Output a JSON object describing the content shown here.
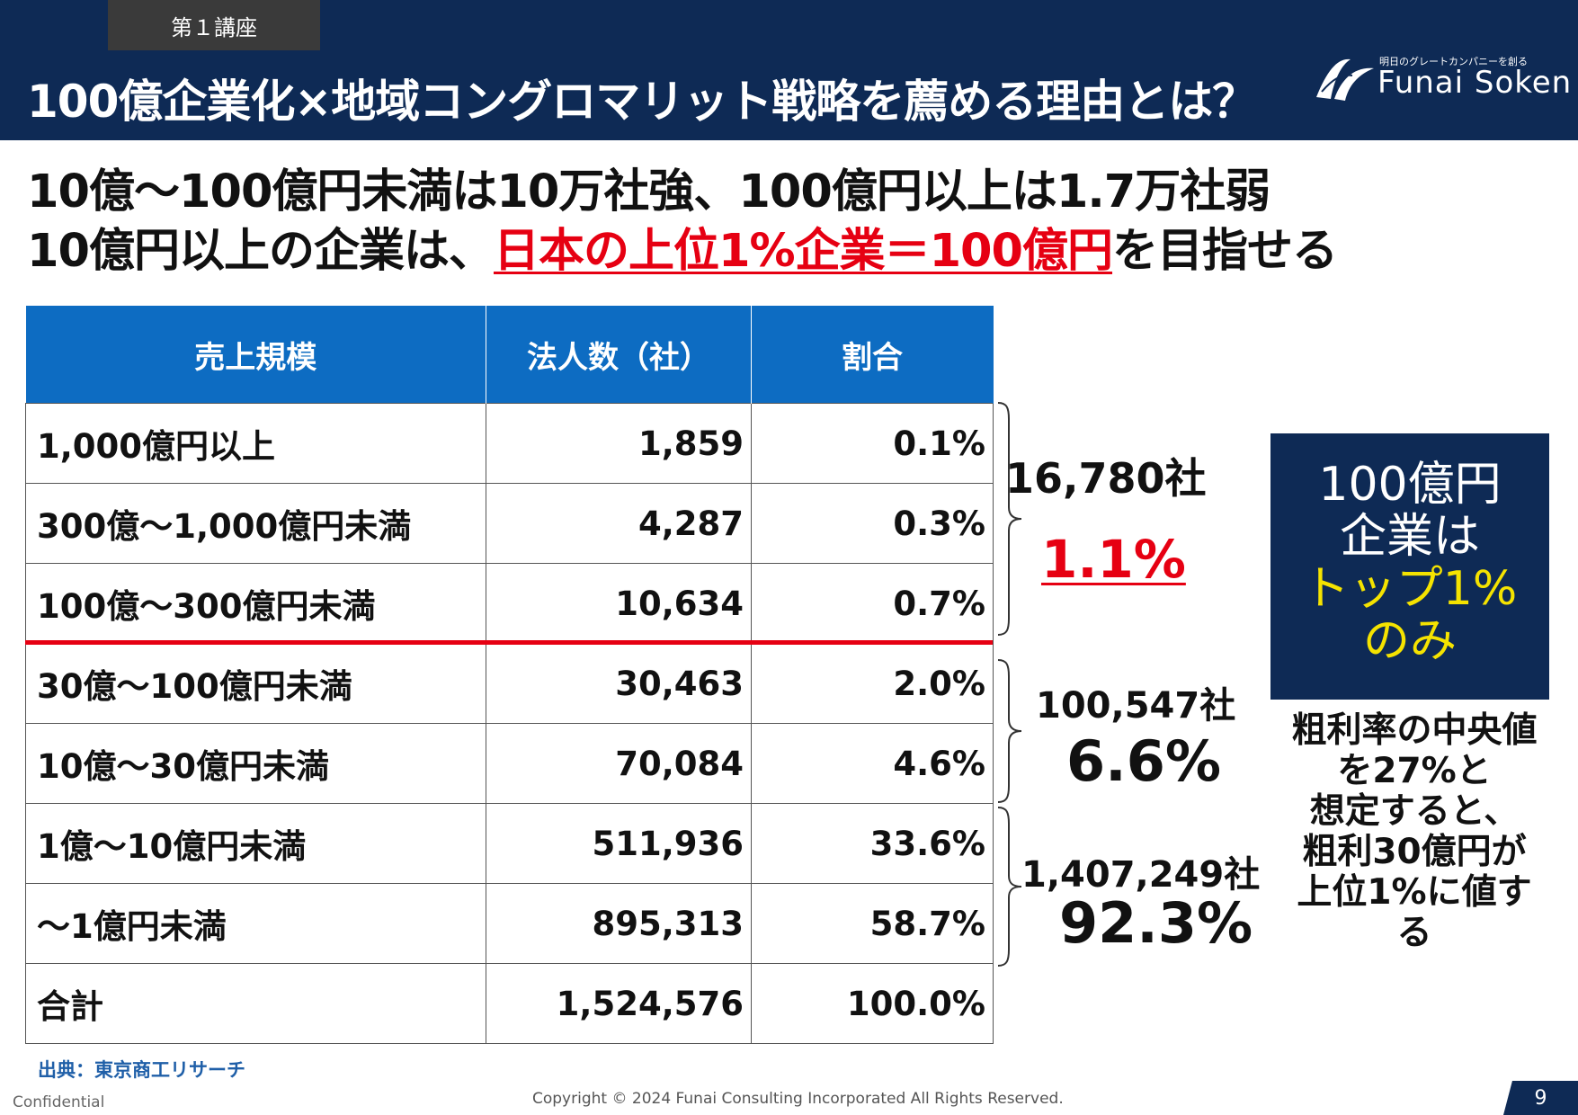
{
  "header": {
    "lecture_label": "第１講座",
    "title": "100億企業化×地域コングロマリット戦略を薦める理由とは？",
    "logo_tagline": "明日のグレートカンパニーを創る",
    "logo_name": "Funai Soken"
  },
  "subtitle": {
    "line1": "10億～100億円未満は10万社強、100億円以上は1.7万社弱",
    "line2_prefix": "10億円以上の企業は、",
    "line2_highlight": "日本の上位1%企業＝100億円",
    "line2_suffix": "を目指せる"
  },
  "table": {
    "headers": [
      "売上規模",
      "法人数（社）",
      "割合"
    ],
    "rows": [
      {
        "scale": "1,000億円以上",
        "count": "1,859",
        "ratio": "0.1%"
      },
      {
        "scale": "300億～1,000億円未満",
        "count": "4,287",
        "ratio": "0.3%"
      },
      {
        "scale": "100億～300億円未満",
        "count": "10,634",
        "ratio": "0.7%"
      },
      {
        "scale": "30億～100億円未満",
        "count": "30,463",
        "ratio": "2.0%"
      },
      {
        "scale": "10億～30億円未満",
        "count": "70,084",
        "ratio": "4.6%"
      },
      {
        "scale": "1億～10億円未満",
        "count": "511,936",
        "ratio": "33.6%"
      },
      {
        "scale": "～1億円未満",
        "count": "895,313",
        "ratio": "58.7%"
      },
      {
        "scale": "合計",
        "count": "1,524,576",
        "ratio": "100.0%"
      }
    ]
  },
  "groups": {
    "top": {
      "count": "16,780社",
      "pct": "1.1%"
    },
    "mid": {
      "count": "100,547社",
      "pct": "6.6%"
    },
    "low": {
      "count": "1,407,249社",
      "pct": "92.3%"
    }
  },
  "callout": {
    "line1": "100億円",
    "line2": "企業は",
    "line3": "トップ1%",
    "line4": "のみ"
  },
  "note": {
    "line1": "粗利率の中央値",
    "line2": "を27%と",
    "line3": "想定すると、",
    "line4": "粗利30億円が",
    "line5": "上位1%に値する"
  },
  "footer": {
    "source": "出典：東京商工リサーチ",
    "confidential": "Confidential",
    "copyright": "Copyright © 2024 Funai Consulting Incorporated All Rights Reserved.",
    "page": "9"
  },
  "colors": {
    "navy": "#0e2a55",
    "table_header": "#0d6cc2",
    "highlight_red": "#e60012",
    "callout_yellow": "#f5e300"
  }
}
